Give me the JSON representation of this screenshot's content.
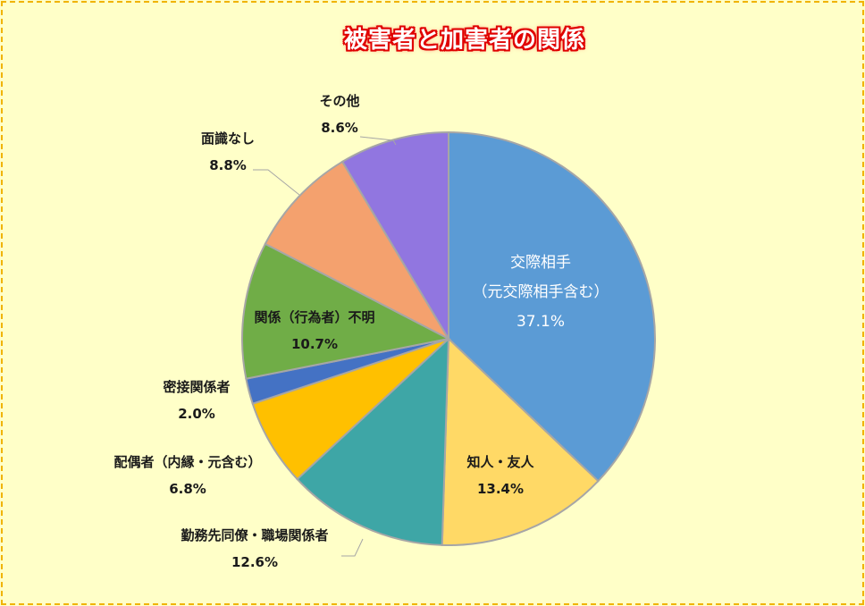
{
  "title": "被害者と加害者の関係",
  "colors": {
    "background": "#ffffc8",
    "border": "#f0b400",
    "title_text": "#ffffff",
    "title_outline": "#e00000",
    "slice_border": "#a6a6a6"
  },
  "chart_data": {
    "type": "pie",
    "title": "被害者と加害者の関係",
    "start_angle_deg": 0,
    "direction": "clockwise",
    "categories": [
      "交際相手（元交際相手含む）",
      "知人・友人",
      "勤務先同僚・職場関係者",
      "配偶者（内縁・元含む）",
      "密接関係者",
      "関係（行為者）不明",
      "面識なし",
      "その他"
    ],
    "values": [
      37.1,
      13.4,
      12.6,
      6.8,
      2.0,
      10.7,
      8.8,
      8.6
    ],
    "unit": "%",
    "slice_colors": [
      "#5b9bd5",
      "#ffd966",
      "#3ea6a6",
      "#ffc000",
      "#4472c4",
      "#70ad47",
      "#f4a16e",
      "#9176e0"
    ],
    "legend": "none (data labels)",
    "data_labels": [
      {
        "lines": [
          "交際相手",
          "（元交際相手含む）"
        ],
        "value": "37.1%"
      },
      {
        "lines": [
          "知人・友人"
        ],
        "value": "13.4%"
      },
      {
        "lines": [
          "勤務先同僚・職場関係者"
        ],
        "value": "12.6%"
      },
      {
        "lines": [
          "配偶者（内縁・元含む）"
        ],
        "value": "6.8%"
      },
      {
        "lines": [
          "密接関係者"
        ],
        "value": "2.0%"
      },
      {
        "lines": [
          "関係（行為者）不明"
        ],
        "value": "10.7%"
      },
      {
        "lines": [
          "面識なし"
        ],
        "value": "8.8%"
      },
      {
        "lines": [
          "その他"
        ],
        "value": "8.6%"
      }
    ]
  }
}
